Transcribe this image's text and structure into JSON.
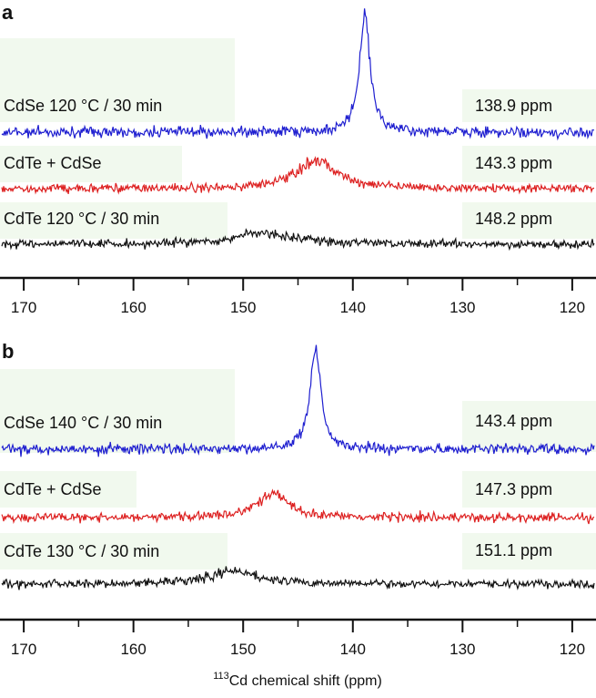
{
  "chart_data": [
    {
      "type": "line",
      "panel": "a",
      "x_min": 118,
      "x_max": 172,
      "x_reversed": true,
      "ticks": [
        170,
        160,
        150,
        140,
        130,
        120
      ],
      "minor_ticks": [
        165,
        155,
        145,
        135,
        125
      ],
      "series": [
        {
          "name": "CdSe 120 °C / 30 min",
          "peak_label": "138.9 ppm",
          "peak": 138.9,
          "width": 0.55,
          "height": 1.0,
          "color": "#1f1fd0"
        },
        {
          "name": "CdTe + CdSe",
          "peak_label": "143.3 ppm",
          "peak": 143.3,
          "width": 2.1,
          "height": 0.6,
          "color": "#dd2020"
        },
        {
          "name": "CdTe 120 °C / 30 min",
          "peak_label": "148.2 ppm",
          "peak": 148.2,
          "width": 2.9,
          "height": 0.38,
          "color": "#111111"
        }
      ]
    },
    {
      "type": "line",
      "panel": "b",
      "x_min": 118,
      "x_max": 172,
      "x_reversed": true,
      "ticks": [
        170,
        160,
        150,
        140,
        130,
        120
      ],
      "minor_ticks": [
        165,
        155,
        145,
        135,
        125
      ],
      "xlabel_sup": "113",
      "xlabel": "Cd chemical shift (ppm)",
      "series": [
        {
          "name": "CdSe 140 °C / 30 min",
          "peak_label": "143.4 ppm",
          "peak": 143.4,
          "width": 0.6,
          "height": 1.0,
          "color": "#1f1fd0"
        },
        {
          "name": "CdTe + CdSe",
          "peak_label": "147.3 ppm",
          "peak": 147.3,
          "width": 1.6,
          "height": 0.55,
          "color": "#dd2020"
        },
        {
          "name": "CdTe 130 °C / 30 min",
          "peak_label": "151.1 ppm",
          "peak": 151.1,
          "width": 2.4,
          "height": 0.4,
          "color": "#111111"
        }
      ]
    }
  ]
}
